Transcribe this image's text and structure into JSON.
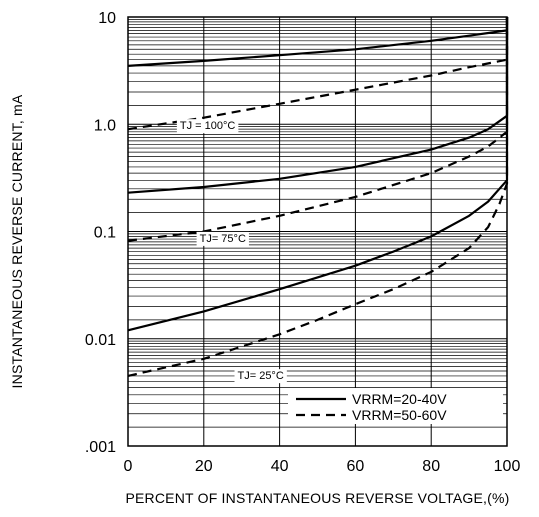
{
  "chart_data": {
    "type": "line",
    "title": "",
    "xlabel": "PERCENT OF INSTANTANEOUS REVERSE VOLTAGE,(%)",
    "ylabel": "INSTANTANEOUS REVERSE CURRENT, mA",
    "xlim": [
      0,
      100
    ],
    "ylim": [
      0.001,
      10
    ],
    "yscale": "log",
    "grid": true,
    "x_ticks": [
      "0",
      "20",
      "40",
      "60",
      "80",
      "100"
    ],
    "y_ticks": [
      {
        "value": 0.001,
        "label": ".001"
      },
      {
        "value": 0.01,
        "label": "0.01"
      },
      {
        "value": 0.1,
        "label": "0.1"
      },
      {
        "value": 1,
        "label": "1.0"
      },
      {
        "value": 10,
        "label": "10"
      }
    ],
    "legend": {
      "placement": "bottom-right",
      "entries": [
        {
          "label": "VRRM=20-40V",
          "style": "solid"
        },
        {
          "label": "VRRM=50-60V",
          "style": "dashed"
        }
      ]
    },
    "annotations": [
      {
        "label": "TJ = 100°C",
        "x": 21,
        "y": 0.9
      },
      {
        "label": "TJ= 75°C",
        "x": 25,
        "y": 0.08
      },
      {
        "label": "TJ= 25°C",
        "x": 35,
        "y": 0.0042
      }
    ],
    "series": [
      {
        "style": "solid",
        "group": "TJ = 100°C",
        "x": [
          0,
          20,
          40,
          60,
          80,
          90,
          100,
          100
        ],
        "y": [
          3.5,
          3.9,
          4.4,
          5.0,
          6.0,
          6.7,
          7.5,
          10
        ]
      },
      {
        "style": "dashed",
        "group": "TJ = 100°C",
        "x": [
          0,
          20,
          40,
          60,
          80,
          90,
          100,
          100
        ],
        "y": [
          0.9,
          1.15,
          1.55,
          2.1,
          2.85,
          3.4,
          4.0,
          10
        ]
      },
      {
        "style": "solid",
        "group": "TJ= 75°C",
        "x": [
          0,
          20,
          40,
          60,
          80,
          90,
          95,
          100,
          100
        ],
        "y": [
          0.23,
          0.26,
          0.31,
          0.4,
          0.58,
          0.75,
          0.9,
          1.2,
          10
        ]
      },
      {
        "style": "dashed",
        "group": "TJ= 75°C",
        "x": [
          0,
          20,
          40,
          60,
          80,
          90,
          95,
          100,
          100
        ],
        "y": [
          0.082,
          0.1,
          0.14,
          0.21,
          0.35,
          0.5,
          0.62,
          0.85,
          10
        ]
      },
      {
        "style": "solid",
        "group": "TJ= 25°C",
        "x": [
          0,
          20,
          40,
          60,
          70,
          80,
          90,
          95,
          98,
          100,
          100
        ],
        "y": [
          0.012,
          0.018,
          0.029,
          0.048,
          0.065,
          0.09,
          0.14,
          0.19,
          0.25,
          0.3,
          10
        ]
      },
      {
        "style": "dashed",
        "group": "TJ= 25°C",
        "x": [
          0,
          20,
          40,
          50,
          60,
          70,
          80,
          90,
          95,
          98,
          100,
          100
        ],
        "y": [
          0.0045,
          0.0065,
          0.011,
          0.015,
          0.021,
          0.029,
          0.042,
          0.07,
          0.11,
          0.18,
          0.28,
          10
        ]
      }
    ]
  }
}
